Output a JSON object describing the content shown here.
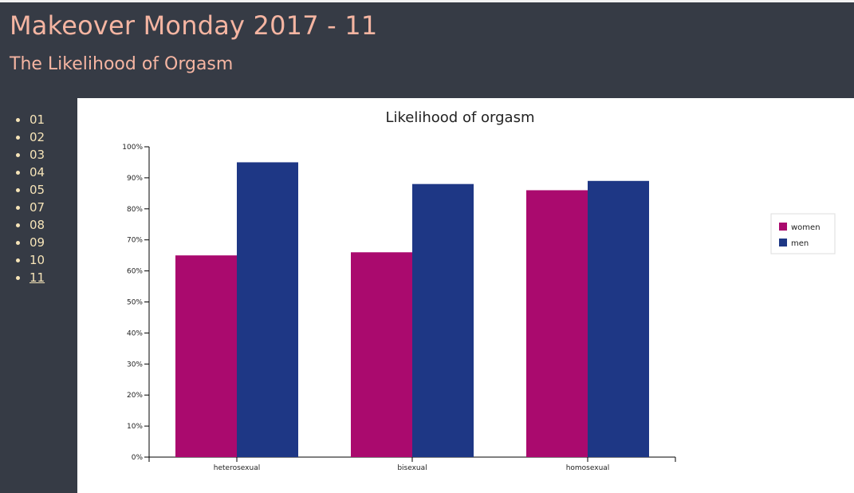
{
  "header": {
    "title": "Makeover Monday 2017 - 11",
    "subtitle": "The Likelihood of Orgasm"
  },
  "sidebar": {
    "items": [
      {
        "label": "01",
        "current": false
      },
      {
        "label": "02",
        "current": false
      },
      {
        "label": "03",
        "current": false
      },
      {
        "label": "04",
        "current": false
      },
      {
        "label": "05",
        "current": false
      },
      {
        "label": "07",
        "current": false
      },
      {
        "label": "08",
        "current": false
      },
      {
        "label": "09",
        "current": false
      },
      {
        "label": "10",
        "current": false
      },
      {
        "label": "11",
        "current": true
      }
    ]
  },
  "colors": {
    "header_bg": "#363b45",
    "title_text": "#f5b5a2",
    "nav_text": "#f6e4b8",
    "women": "#aa0a6e",
    "men": "#1e3785"
  },
  "chart_data": {
    "type": "bar",
    "title": "Likelihood of orgasm",
    "categories": [
      "heterosexual",
      "bisexual",
      "homosexual"
    ],
    "series": [
      {
        "name": "women",
        "values": [
          65,
          66,
          86
        ],
        "color": "#aa0a6e"
      },
      {
        "name": "men",
        "values": [
          95,
          88,
          89
        ],
        "color": "#1e3785"
      }
    ],
    "xlabel": "",
    "ylabel": "",
    "ylim": [
      0,
      100
    ],
    "yticks": [
      "0%",
      "10%",
      "20%",
      "30%",
      "40%",
      "50%",
      "60%",
      "70%",
      "80%",
      "90%",
      "100%"
    ],
    "grid": false,
    "legend": "right"
  }
}
